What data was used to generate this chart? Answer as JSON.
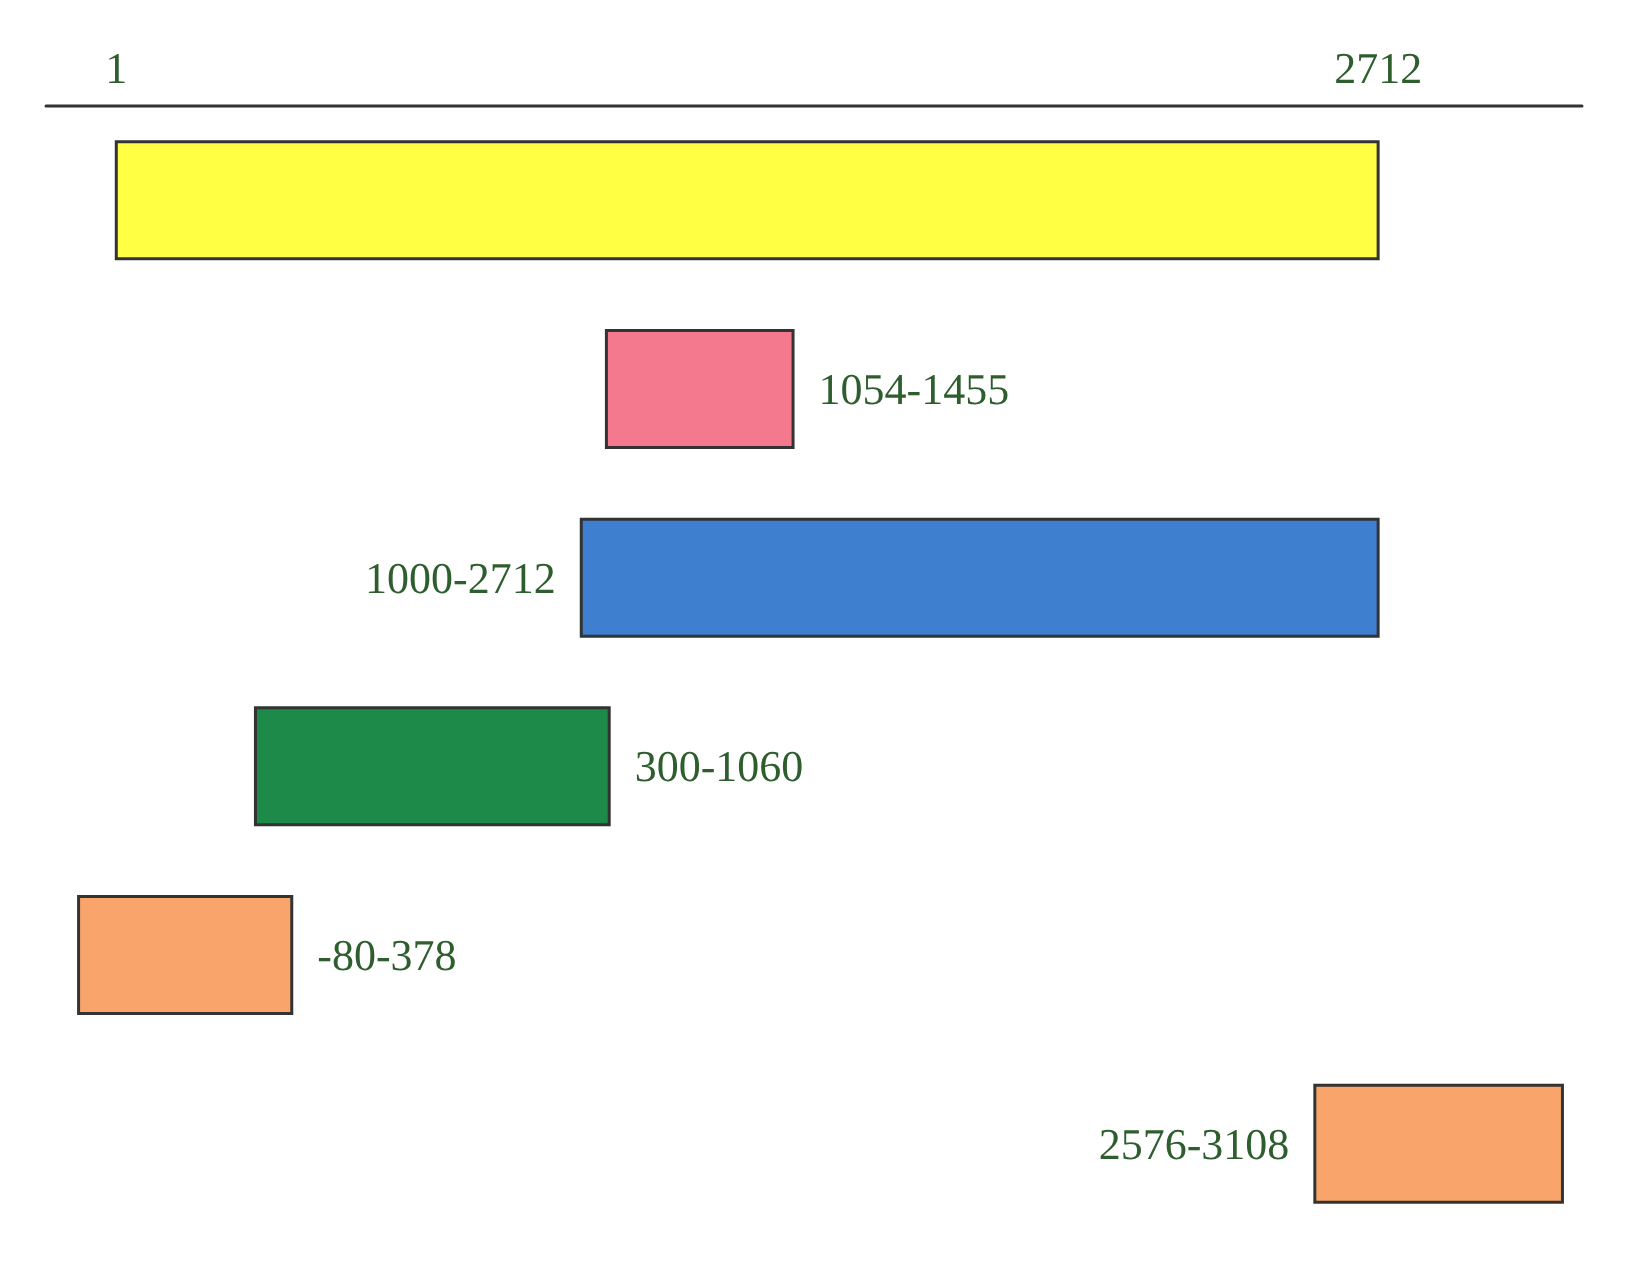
{
  "chart_data": {
    "type": "bar",
    "orientation": "horizontal",
    "categories": [
      null,
      null,
      null,
      null,
      null,
      null
    ],
    "base": [
      1,
      1054,
      1000,
      300,
      -80,
      2576
    ],
    "values": [
      2711,
      401,
      1712,
      760,
      458,
      532
    ],
    "colors": [
      "#ffff44",
      "#f4798f",
      "#3f7fd0",
      "#1e8a4a",
      "#f9a46a",
      "#f9a46a"
    ],
    "value_labels": [
      null,
      "1054-1455",
      "1000-2712",
      "300-1060",
      "-80-378",
      "2576-3108"
    ],
    "xlim": [
      -150,
      3150
    ],
    "xticks": [
      1,
      2712
    ],
    "tick_labels": "x"
  }
}
